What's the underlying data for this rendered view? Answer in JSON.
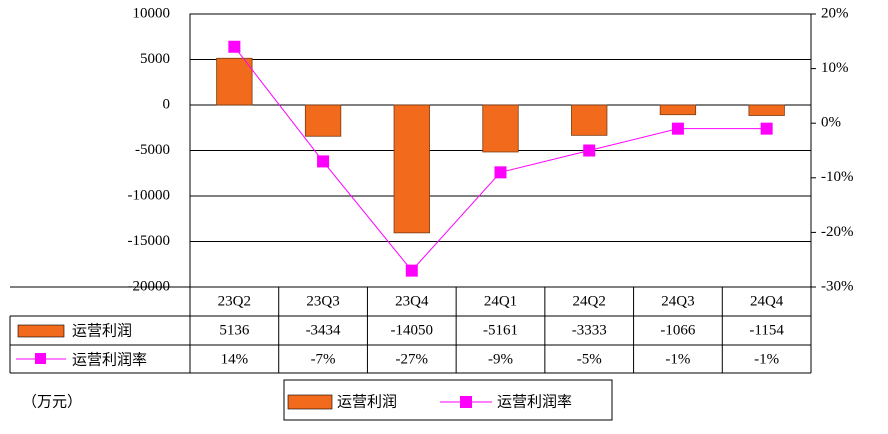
{
  "chart_data": {
    "type": "bar-line",
    "unit_note": "（万元）",
    "categories": [
      "23Q2",
      "23Q3",
      "23Q4",
      "24Q1",
      "24Q2",
      "24Q3",
      "24Q4"
    ],
    "series": [
      {
        "name": "运营利润",
        "color": "#f26a1b",
        "values": [
          5136,
          -3434,
          -14050,
          -5161,
          -3333,
          -1066,
          -1154
        ]
      },
      {
        "name": "运营利润率",
        "color": "#ff00ff",
        "axis": "y2",
        "values": [
          14,
          -7,
          -27,
          -9,
          -5,
          -1,
          -1
        ],
        "value_labels": [
          "14%",
          "-7%",
          "-27%",
          "-9%",
          "-5%",
          "-1%",
          "-1%"
        ]
      }
    ],
    "ylim": [
      -20000,
      10000
    ],
    "yticks": [
      10000,
      5000,
      0,
      -5000,
      -10000,
      -15000,
      -20000
    ],
    "y2lim": [
      -30,
      20
    ],
    "y2ticks": [
      {
        "value": 20,
        "label": "20%"
      },
      {
        "value": 10,
        "label": "10%"
      },
      {
        "value": 0,
        "label": "0%"
      },
      {
        "value": -10,
        "label": "-10%"
      },
      {
        "value": -20,
        "label": "-20%"
      },
      {
        "value": -30,
        "label": "-30%"
      }
    ],
    "grid": true
  }
}
